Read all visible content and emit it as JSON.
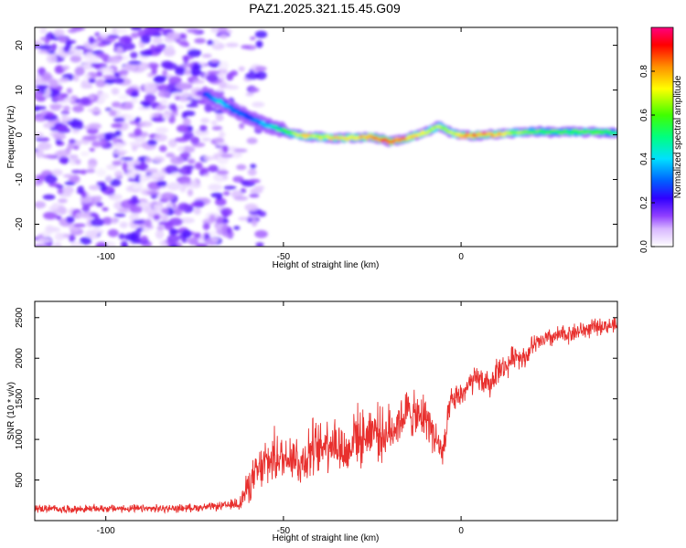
{
  "figure": {
    "title": "PAZ1.2025.321.15.45.G09"
  },
  "chart_data": [
    {
      "type": "heatmap",
      "xlabel": "Height of straight line (km)",
      "ylabel": "Frequency (Hz)",
      "xlim": [
        -120,
        44
      ],
      "ylim": [
        -25,
        24
      ],
      "xticks": [
        -100,
        -50,
        0
      ],
      "yticks": [
        -20,
        -10,
        0,
        10,
        20
      ],
      "colorbar": {
        "label": "Normalized spectral amplitude",
        "range": [
          0,
          1
        ],
        "ticks": [
          "0.0",
          "0.2",
          "0.4",
          "0.6",
          "0.8"
        ],
        "colors": [
          "#ffffff",
          "#c080ff",
          "#8000ff",
          "#0000ff",
          "#00ffff",
          "#00ff00",
          "#ffff00",
          "#ff8000",
          "#ff0000",
          "#ff0080"
        ]
      },
      "signal_ridge": {
        "description_values": "frequency (Hz) vs height (km) of main spectral ridge",
        "x": [
          -72,
          -68,
          -64,
          -60,
          -56,
          -52,
          -48,
          -44,
          -40,
          -35,
          -30,
          -25,
          -20,
          -15,
          -10,
          -6,
          -3,
          0,
          5,
          10,
          15,
          20,
          25,
          30,
          35,
          40,
          44
        ],
        "y": [
          9,
          7.5,
          5.5,
          4,
          2.5,
          1.5,
          0.3,
          -0.3,
          -0.5,
          -0.8,
          -0.6,
          -0.5,
          -1.5,
          -0.7,
          0.5,
          2,
          0.5,
          -0.2,
          -0.1,
          0.1,
          0.4,
          0.8,
          0.6,
          0.6,
          0.6,
          0.5,
          0.5
        ],
        "amplitude": [
          0.3,
          0.45,
          0.35,
          0.3,
          0.4,
          0.5,
          0.65,
          0.8,
          0.75,
          0.8,
          0.8,
          0.85,
          0.95,
          0.85,
          0.75,
          0.7,
          0.7,
          0.85,
          0.9,
          0.85,
          0.7,
          0.65,
          0.6,
          0.6,
          0.65,
          0.6,
          0.55
        ]
      },
      "noise_region": {
        "xrange": [
          -120,
          -60
        ],
        "yrange": [
          -25,
          24
        ],
        "amplitude_range": [
          0.02,
          0.2
        ]
      }
    },
    {
      "type": "line",
      "xlabel": "Height of straight line (km)",
      "ylabel": "SNR (10 * v/v)",
      "xlim": [
        -120,
        44
      ],
      "ylim": [
        0,
        2700
      ],
      "xticks": [
        -100,
        -50,
        0
      ],
      "yticks": [
        500,
        1000,
        1500,
        2000,
        2500
      ],
      "series": [
        {
          "color": "#e8302e",
          "x": [
            -120,
            -110,
            -100,
            -90,
            -80,
            -70,
            -65,
            -62,
            -60,
            -58,
            -55,
            -52,
            -50,
            -48,
            -45,
            -42,
            -40,
            -38,
            -35,
            -32,
            -30,
            -28,
            -25,
            -22,
            -20,
            -18,
            -15,
            -12,
            -10,
            -8,
            -5,
            -3,
            0,
            3,
            5,
            8,
            10,
            13,
            15,
            18,
            20,
            25,
            30,
            35,
            40,
            44
          ],
          "values": [
            150,
            140,
            150,
            145,
            150,
            170,
            190,
            230,
            420,
            550,
            700,
            800,
            750,
            850,
            700,
            900,
            850,
            1000,
            950,
            800,
            1100,
            1000,
            1150,
            1050,
            1100,
            1200,
            1350,
            1250,
            1300,
            1100,
            800,
            1450,
            1550,
            1700,
            1750,
            1650,
            1850,
            1900,
            2050,
            2000,
            2150,
            2250,
            2300,
            2350,
            2400,
            2400
          ],
          "noise_amplitude": [
            60,
            60,
            60,
            60,
            60,
            60,
            70,
            150,
            250,
            300,
            400,
            400,
            350,
            400,
            400,
            450,
            400,
            450,
            450,
            400,
            450,
            400,
            400,
            400,
            400,
            350,
            350,
            350,
            350,
            300,
            300,
            200,
            200,
            200,
            200,
            200,
            200,
            180,
            180,
            160,
            160,
            150,
            150,
            140,
            120,
            120
          ]
        }
      ]
    }
  ]
}
